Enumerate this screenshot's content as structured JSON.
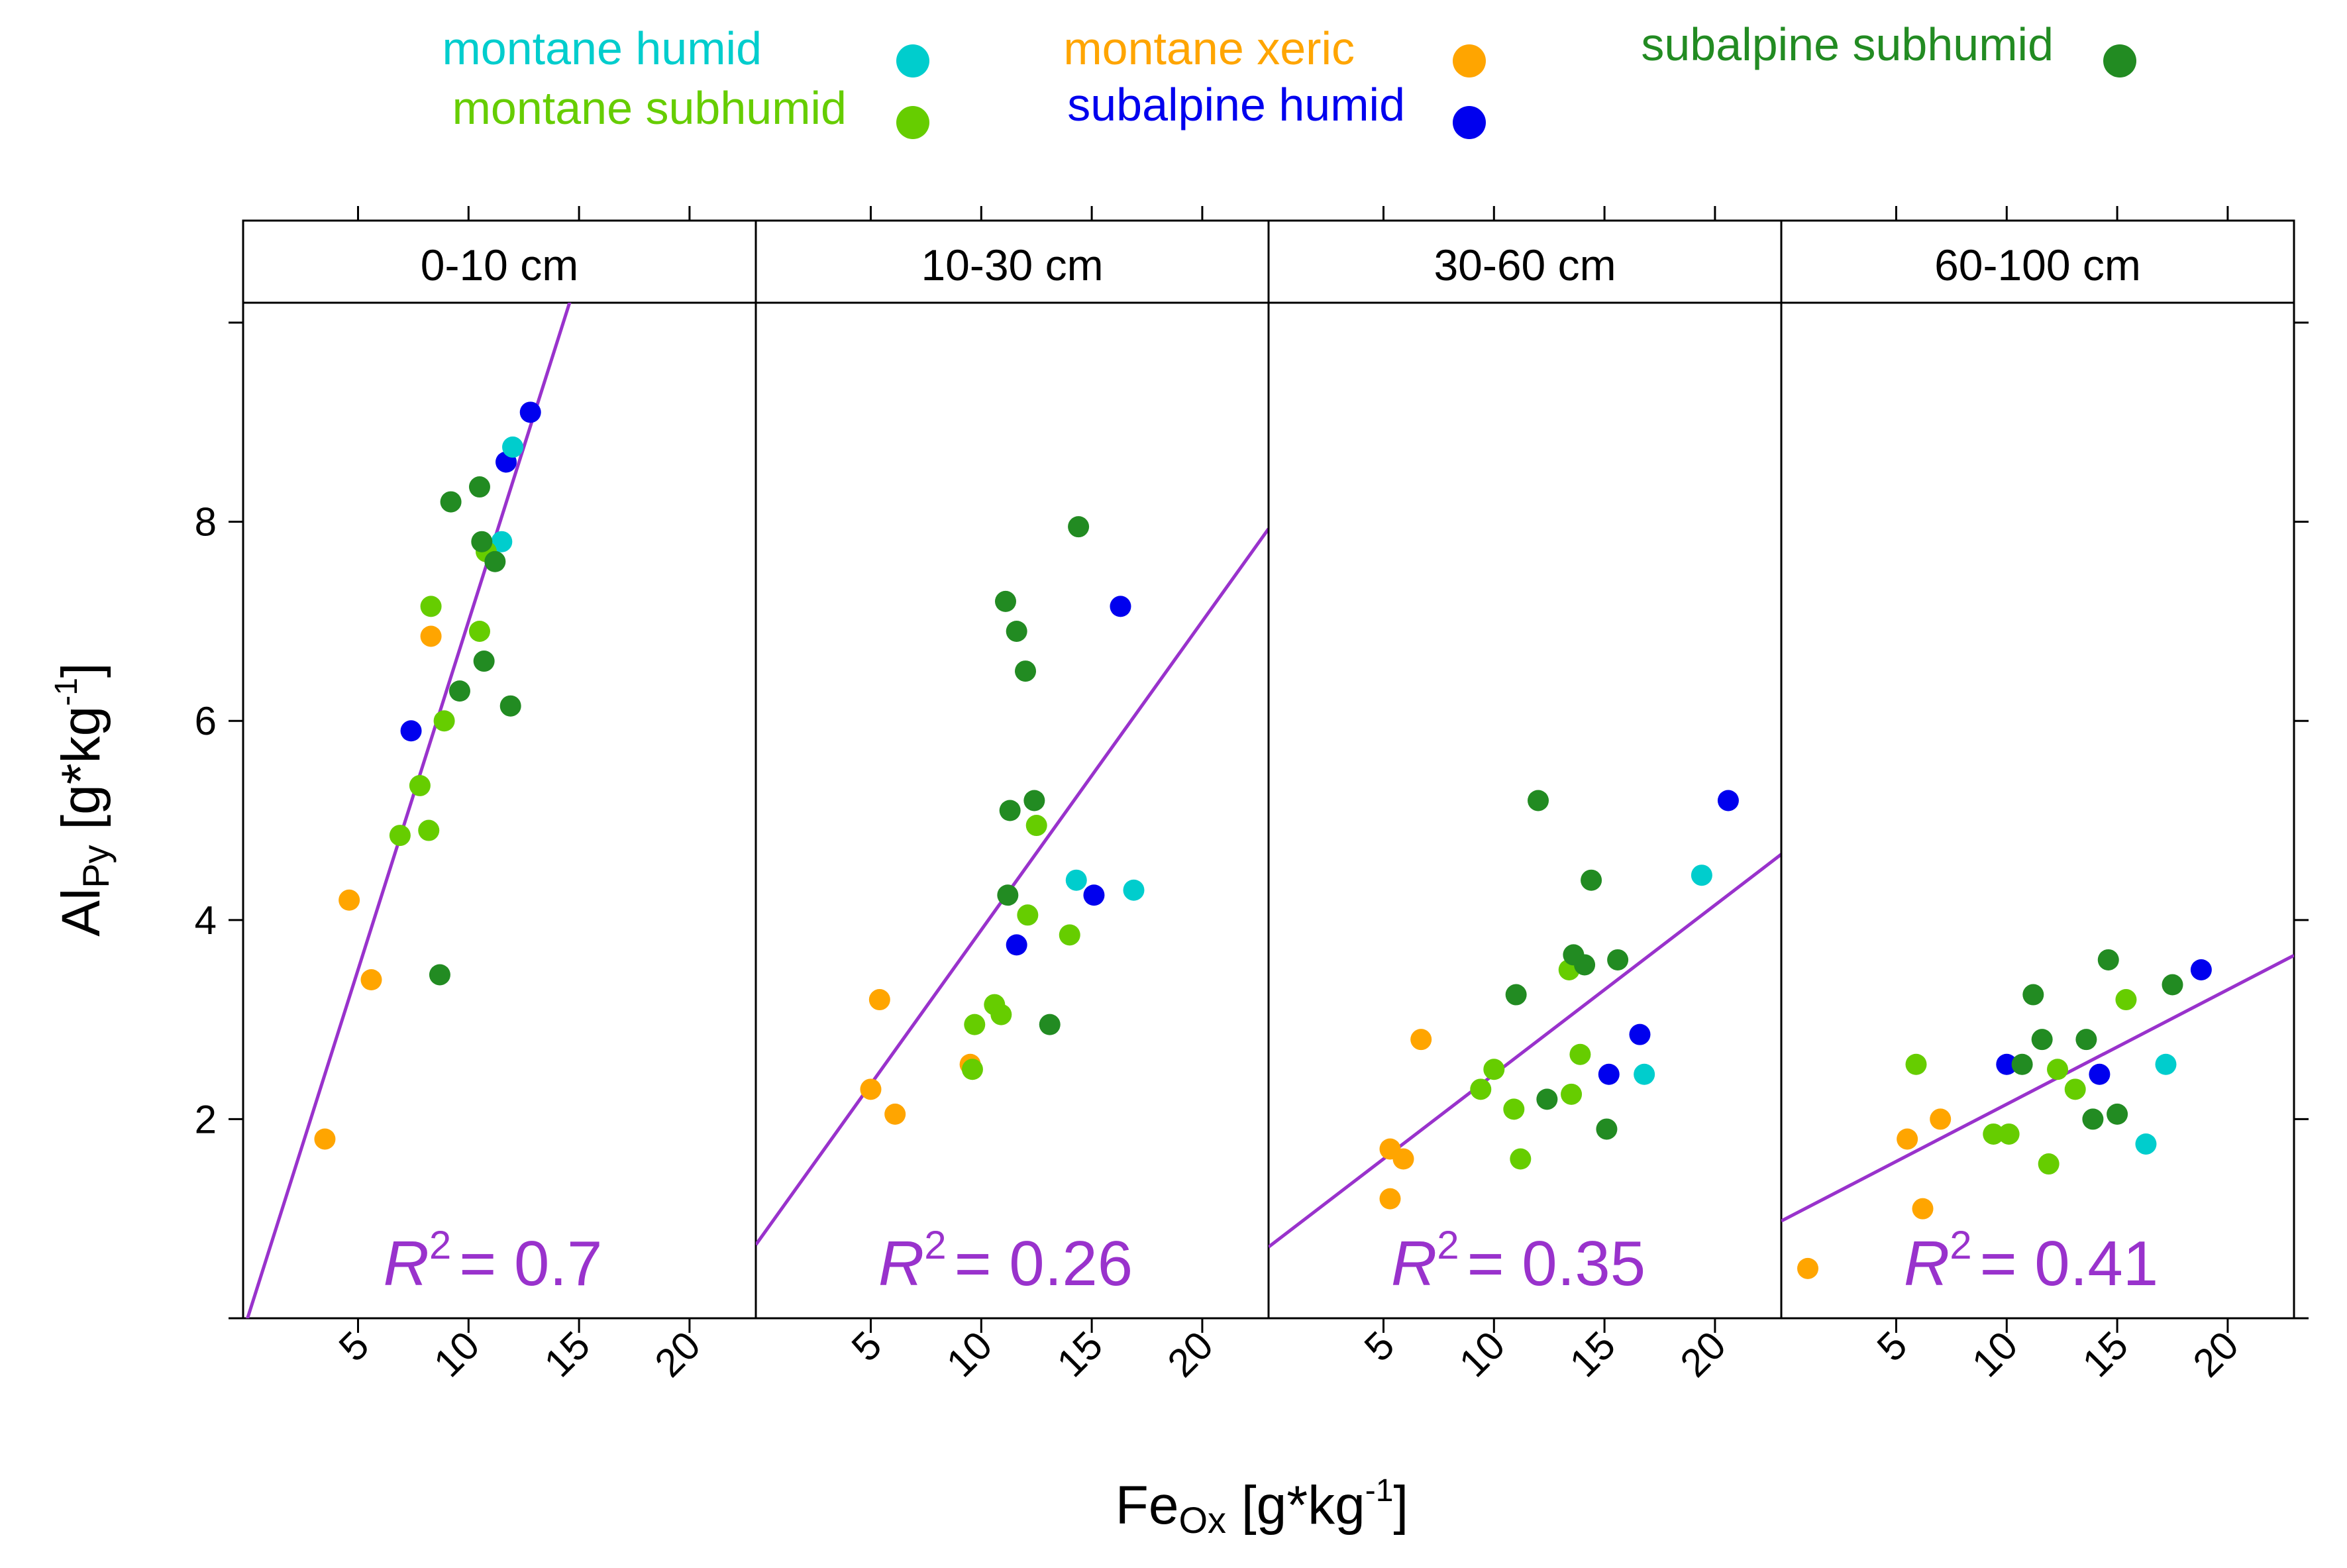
{
  "legend": [
    {
      "label": "montane humid",
      "color": "#00CDCD"
    },
    {
      "label": "montane subhumid",
      "color": "#66CD00"
    },
    {
      "label": "montane xeric",
      "color": "#FFA500"
    },
    {
      "label": "subalpine humid",
      "color": "#0000EE"
    },
    {
      "label": "subalpine subhumid",
      "color": "#228B22"
    }
  ],
  "axes": {
    "xlabel_main": "Fe",
    "xlabel_sub": "Ox",
    "xlabel_unit_pre": " [g*kg",
    "xlabel_unit_sup": "-1",
    "xlabel_unit_post": "]",
    "ylabel_main": "Al",
    "ylabel_sub": "Py",
    "ylabel_unit_pre": " [g*kg",
    "ylabel_unit_sup": "-1",
    "ylabel_unit_post": "]",
    "x_ticks": [
      5,
      10,
      15,
      20
    ],
    "y_ticks": [
      2,
      4,
      6,
      8
    ],
    "xlim": [
      -0.2,
      23
    ],
    "ylim": [
      0,
      10.2
    ]
  },
  "fit_color": "#9932CC",
  "chart_data": {
    "type": "scatter",
    "layout": "4 panels, shared axes, legend top",
    "panels": [
      {
        "strip": "0-10 cm",
        "r2_symbol": "R",
        "r2_power": "2",
        "r2_text": "= 0.7",
        "fit": {
          "intercept": 0.0,
          "slope": 0.7
        },
        "points": [
          {
            "group": "montane xeric",
            "x": 3.5,
            "y": 1.8
          },
          {
            "group": "montane xeric",
            "x": 4.6,
            "y": 4.2
          },
          {
            "group": "montane xeric",
            "x": 5.6,
            "y": 3.4
          },
          {
            "group": "montane xeric",
            "x": 8.3,
            "y": 6.85
          },
          {
            "group": "subalpine humid",
            "x": 7.4,
            "y": 5.9
          },
          {
            "group": "subalpine humid",
            "x": 11.7,
            "y": 8.6
          },
          {
            "group": "subalpine humid",
            "x": 12.8,
            "y": 9.1
          },
          {
            "group": "montane humid",
            "x": 11.5,
            "y": 7.8
          },
          {
            "group": "montane humid",
            "x": 12.0,
            "y": 8.75
          },
          {
            "group": "montane subhumid",
            "x": 6.9,
            "y": 4.85
          },
          {
            "group": "montane subhumid",
            "x": 7.8,
            "y": 5.35
          },
          {
            "group": "montane subhumid",
            "x": 8.2,
            "y": 4.9
          },
          {
            "group": "montane subhumid",
            "x": 8.9,
            "y": 6.0
          },
          {
            "group": "montane subhumid",
            "x": 8.3,
            "y": 7.15
          },
          {
            "group": "montane subhumid",
            "x": 10.5,
            "y": 6.9
          },
          {
            "group": "montane subhumid",
            "x": 10.8,
            "y": 7.7
          },
          {
            "group": "subalpine subhumid",
            "x": 8.7,
            "y": 3.45
          },
          {
            "group": "subalpine subhumid",
            "x": 9.6,
            "y": 6.3
          },
          {
            "group": "subalpine subhumid",
            "x": 10.7,
            "y": 6.6
          },
          {
            "group": "subalpine subhumid",
            "x": 11.9,
            "y": 6.15
          },
          {
            "group": "subalpine subhumid",
            "x": 9.2,
            "y": 8.2
          },
          {
            "group": "subalpine subhumid",
            "x": 10.5,
            "y": 8.35
          },
          {
            "group": "subalpine subhumid",
            "x": 10.6,
            "y": 7.8
          },
          {
            "group": "subalpine subhumid",
            "x": 11.2,
            "y": 7.6
          }
        ]
      },
      {
        "strip": "10-30 cm",
        "r2_symbol": "R",
        "r2_power": "2",
        "r2_text": "= 0.26",
        "fit": {
          "intercept": 0.8,
          "slope": 0.31
        },
        "points": [
          {
            "group": "montane xeric",
            "x": 5.0,
            "y": 2.3
          },
          {
            "group": "montane xeric",
            "x": 5.4,
            "y": 3.2
          },
          {
            "group": "montane xeric",
            "x": 6.1,
            "y": 2.05
          },
          {
            "group": "montane xeric",
            "x": 9.5,
            "y": 2.55
          },
          {
            "group": "subalpine humid",
            "x": 11.6,
            "y": 3.75
          },
          {
            "group": "subalpine humid",
            "x": 15.1,
            "y": 4.25
          },
          {
            "group": "subalpine humid",
            "x": 16.3,
            "y": 7.15
          },
          {
            "group": "montane humid",
            "x": 14.3,
            "y": 4.4
          },
          {
            "group": "montane humid",
            "x": 16.9,
            "y": 4.3
          },
          {
            "group": "montane subhumid",
            "x": 9.6,
            "y": 2.5
          },
          {
            "group": "montane subhumid",
            "x": 9.7,
            "y": 2.95
          },
          {
            "group": "montane subhumid",
            "x": 10.6,
            "y": 3.15
          },
          {
            "group": "montane subhumid",
            "x": 10.9,
            "y": 3.05
          },
          {
            "group": "montane subhumid",
            "x": 12.1,
            "y": 4.05
          },
          {
            "group": "montane subhumid",
            "x": 12.5,
            "y": 4.95
          },
          {
            "group": "montane subhumid",
            "x": 14.0,
            "y": 3.85
          },
          {
            "group": "subalpine subhumid",
            "x": 11.2,
            "y": 4.25
          },
          {
            "group": "subalpine subhumid",
            "x": 11.3,
            "y": 5.1
          },
          {
            "group": "subalpine subhumid",
            "x": 12.4,
            "y": 5.2
          },
          {
            "group": "subalpine subhumid",
            "x": 11.1,
            "y": 7.2
          },
          {
            "group": "subalpine subhumid",
            "x": 11.6,
            "y": 6.9
          },
          {
            "group": "subalpine subhumid",
            "x": 12.0,
            "y": 6.5
          },
          {
            "group": "subalpine subhumid",
            "x": 13.1,
            "y": 2.95
          },
          {
            "group": "subalpine subhumid",
            "x": 14.4,
            "y": 7.95
          }
        ]
      },
      {
        "strip": "30-60 cm",
        "r2_symbol": "R",
        "r2_power": "2",
        "r2_text": "= 0.35",
        "fit": {
          "intercept": 0.75,
          "slope": 0.17
        },
        "points": [
          {
            "group": "montane xeric",
            "x": 5.3,
            "y": 1.2
          },
          {
            "group": "montane xeric",
            "x": 5.3,
            "y": 1.7
          },
          {
            "group": "montane xeric",
            "x": 5.9,
            "y": 1.6
          },
          {
            "group": "montane xeric",
            "x": 6.7,
            "y": 2.8
          },
          {
            "group": "subalpine humid",
            "x": 15.2,
            "y": 2.45
          },
          {
            "group": "subalpine humid",
            "x": 16.6,
            "y": 2.85
          },
          {
            "group": "subalpine humid",
            "x": 20.6,
            "y": 5.2
          },
          {
            "group": "montane humid",
            "x": 16.8,
            "y": 2.45
          },
          {
            "group": "montane humid",
            "x": 19.4,
            "y": 4.45
          },
          {
            "group": "montane subhumid",
            "x": 9.4,
            "y": 2.3
          },
          {
            "group": "montane subhumid",
            "x": 10.0,
            "y": 2.5
          },
          {
            "group": "montane subhumid",
            "x": 10.9,
            "y": 2.1
          },
          {
            "group": "montane subhumid",
            "x": 11.2,
            "y": 1.6
          },
          {
            "group": "montane subhumid",
            "x": 13.5,
            "y": 2.25
          },
          {
            "group": "montane subhumid",
            "x": 13.4,
            "y": 3.5
          },
          {
            "group": "montane subhumid",
            "x": 13.9,
            "y": 2.65
          },
          {
            "group": "subalpine subhumid",
            "x": 11.0,
            "y": 3.25
          },
          {
            "group": "subalpine subhumid",
            "x": 12.0,
            "y": 5.2
          },
          {
            "group": "subalpine subhumid",
            "x": 12.4,
            "y": 2.2
          },
          {
            "group": "subalpine subhumid",
            "x": 13.6,
            "y": 3.65
          },
          {
            "group": "subalpine subhumid",
            "x": 14.1,
            "y": 3.55
          },
          {
            "group": "subalpine subhumid",
            "x": 14.4,
            "y": 4.4
          },
          {
            "group": "subalpine subhumid",
            "x": 15.1,
            "y": 1.9
          },
          {
            "group": "subalpine subhumid",
            "x": 15.6,
            "y": 3.6
          }
        ]
      },
      {
        "strip": "60-100 cm",
        "r2_symbol": "R",
        "r2_power": "2",
        "r2_text": "= 0.41",
        "fit": {
          "intercept": 1.0,
          "slope": 0.115
        },
        "points": [
          {
            "group": "montane xeric",
            "x": 1.0,
            "y": 0.5
          },
          {
            "group": "montane xeric",
            "x": 5.5,
            "y": 1.8
          },
          {
            "group": "montane xeric",
            "x": 6.2,
            "y": 1.1
          },
          {
            "group": "montane xeric",
            "x": 7.0,
            "y": 2.0
          },
          {
            "group": "subalpine humid",
            "x": 10.0,
            "y": 2.55
          },
          {
            "group": "subalpine humid",
            "x": 14.2,
            "y": 2.45
          },
          {
            "group": "subalpine humid",
            "x": 18.8,
            "y": 3.5
          },
          {
            "group": "montane humid",
            "x": 16.3,
            "y": 1.75
          },
          {
            "group": "montane humid",
            "x": 17.2,
            "y": 2.55
          },
          {
            "group": "montane subhumid",
            "x": 5.9,
            "y": 2.55
          },
          {
            "group": "montane subhumid",
            "x": 9.4,
            "y": 1.85
          },
          {
            "group": "montane subhumid",
            "x": 10.1,
            "y": 1.85
          },
          {
            "group": "montane subhumid",
            "x": 11.9,
            "y": 1.55
          },
          {
            "group": "montane subhumid",
            "x": 12.3,
            "y": 2.5
          },
          {
            "group": "montane subhumid",
            "x": 13.1,
            "y": 2.3
          },
          {
            "group": "montane subhumid",
            "x": 15.4,
            "y": 3.2
          },
          {
            "group": "subalpine subhumid",
            "x": 10.7,
            "y": 2.55
          },
          {
            "group": "subalpine subhumid",
            "x": 11.2,
            "y": 3.25
          },
          {
            "group": "subalpine subhumid",
            "x": 11.6,
            "y": 2.8
          },
          {
            "group": "subalpine subhumid",
            "x": 13.6,
            "y": 2.8
          },
          {
            "group": "subalpine subhumid",
            "x": 13.9,
            "y": 2.0
          },
          {
            "group": "subalpine subhumid",
            "x": 14.6,
            "y": 3.6
          },
          {
            "group": "subalpine subhumid",
            "x": 15.0,
            "y": 2.05
          },
          {
            "group": "subalpine subhumid",
            "x": 17.5,
            "y": 3.35
          }
        ]
      }
    ]
  }
}
